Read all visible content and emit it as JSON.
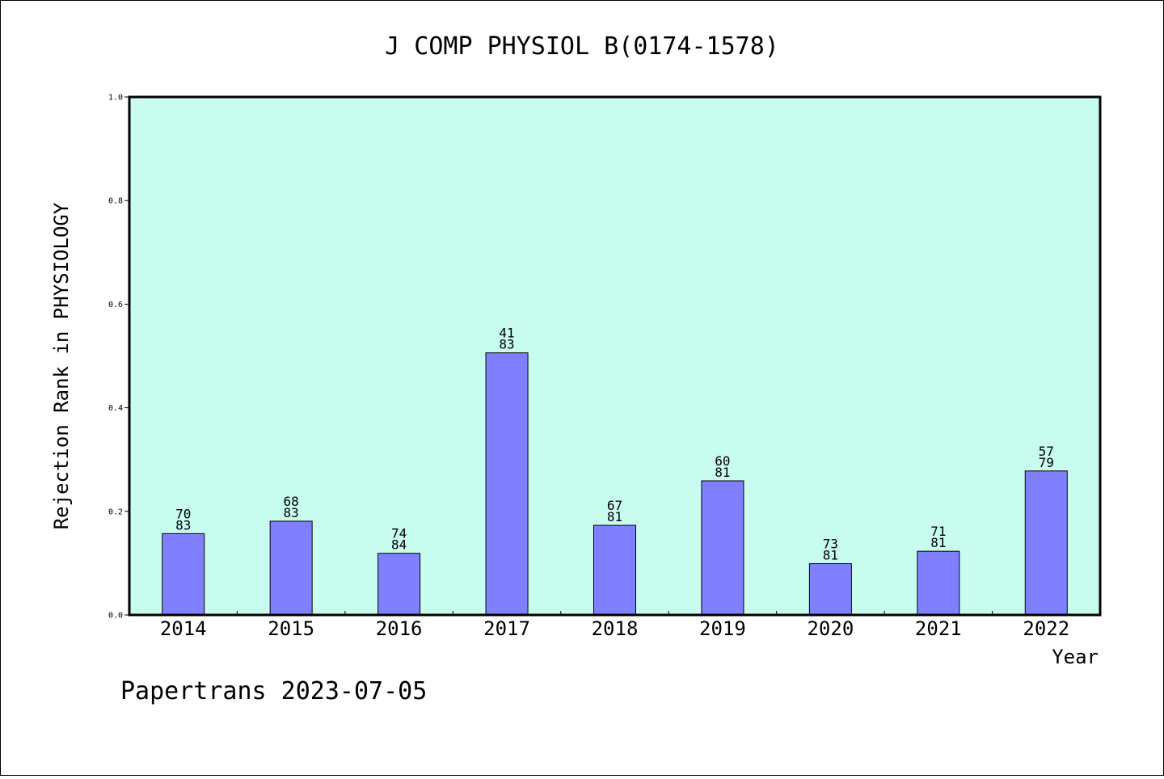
{
  "chart_data": {
    "type": "bar",
    "title": "J COMP PHYSIOL B(0174-1578)",
    "xlabel": "Year",
    "ylabel": "Rejection Rank in PHYSIOLOGY",
    "ylim": [
      0,
      1.0
    ],
    "yticks": [
      "0.0",
      "0.2",
      "0.4",
      "0.6",
      "0.8",
      "1.0"
    ],
    "categories": [
      "2014",
      "2015",
      "2016",
      "2017",
      "2018",
      "2019",
      "2020",
      "2021",
      "2022"
    ],
    "values": [
      0.157,
      0.181,
      0.119,
      0.506,
      0.173,
      0.259,
      0.099,
      0.123,
      0.278
    ],
    "labels_top": [
      "70",
      "68",
      "74",
      "41",
      "67",
      "60",
      "73",
      "71",
      "57"
    ],
    "labels_bottom": [
      "83",
      "83",
      "84",
      "83",
      "81",
      "81",
      "81",
      "81",
      "79"
    ],
    "grid": false,
    "colors": {
      "plot_background": "#c8fcee",
      "bar_fill": "#8080ff",
      "bar_stroke": "#000000"
    }
  },
  "footer": {
    "text": "Papertrans 2023-07-05"
  }
}
